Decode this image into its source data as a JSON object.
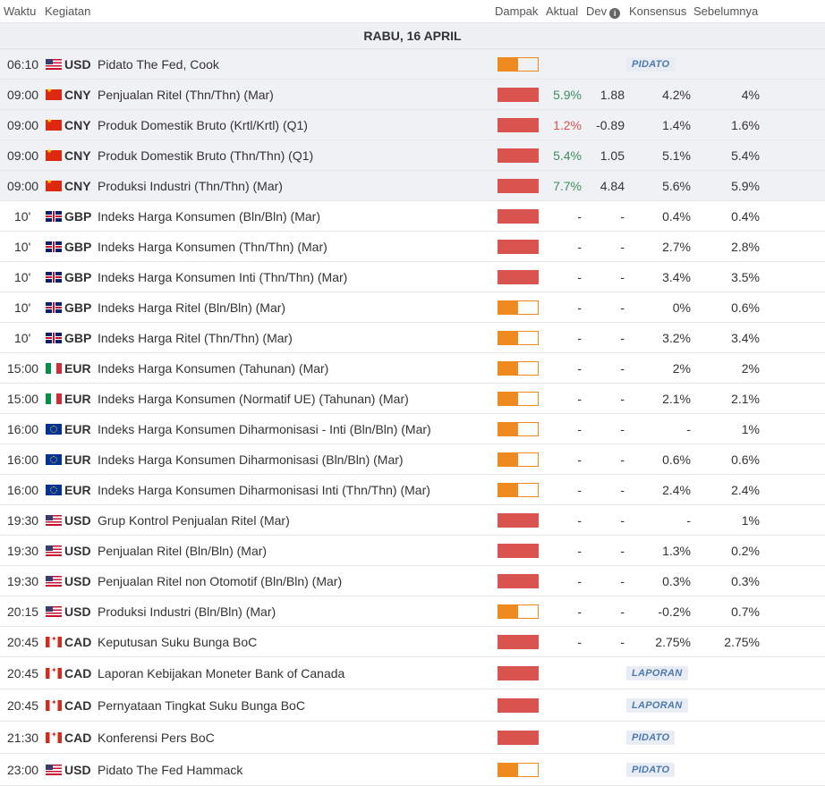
{
  "header": {
    "time": "Waktu",
    "event": "Kegiatan",
    "impact": "Dampak",
    "actual": "Aktual",
    "dev": "Dev",
    "consensus": "Konsensus",
    "previous": "Sebelumnya"
  },
  "date_label": "RABU, 16 APRIL",
  "colors": {
    "high": "#d9534f",
    "medium": "#ee8a1e",
    "positive": "#3d8f5e",
    "negative": "#d9534f",
    "badge": "#4f79ad"
  },
  "rows": [
    {
      "time": "06:10",
      "flag": "us",
      "currency": "USD",
      "event": "Pidato The Fed, Cook",
      "impact": "med",
      "badge": "PIDATO",
      "past": true
    },
    {
      "time": "09:00",
      "flag": "cn",
      "currency": "CNY",
      "event": "Penjualan Ritel (Thn/Thn) (Mar)",
      "impact": "high",
      "actual": "5.9%",
      "actual_color": "green",
      "dev": "1.88",
      "consensus": "4.2%",
      "previous": "4%",
      "past": true
    },
    {
      "time": "09:00",
      "flag": "cn",
      "currency": "CNY",
      "event": "Produk Domestik Bruto (Krtl/Krtl) (Q1)",
      "impact": "high",
      "actual": "1.2%",
      "actual_color": "red",
      "dev": "-0.89",
      "consensus": "1.4%",
      "previous": "1.6%",
      "past": true
    },
    {
      "time": "09:00",
      "flag": "cn",
      "currency": "CNY",
      "event": "Produk Domestik Bruto (Thn/Thn) (Q1)",
      "impact": "high",
      "actual": "5.4%",
      "actual_color": "green",
      "dev": "1.05",
      "consensus": "5.1%",
      "previous": "5.4%",
      "past": true
    },
    {
      "time": "09:00",
      "flag": "cn",
      "currency": "CNY",
      "event": "Produksi Industri (Thn/Thn) (Mar)",
      "impact": "high",
      "actual": "7.7%",
      "actual_color": "green",
      "dev": "4.84",
      "consensus": "5.6%",
      "previous": "5.9%",
      "past": true
    },
    {
      "time": "10'",
      "flag": "gb",
      "currency": "GBP",
      "event": "Indeks Harga Konsumen (Bln/Bln) (Mar)",
      "impact": "high",
      "actual": "-",
      "dev": "-",
      "consensus": "0.4%",
      "previous": "0.4%",
      "rel": true
    },
    {
      "time": "10'",
      "flag": "gb",
      "currency": "GBP",
      "event": "Indeks Harga Konsumen (Thn/Thn) (Mar)",
      "impact": "high",
      "actual": "-",
      "dev": "-",
      "consensus": "2.7%",
      "previous": "2.8%",
      "rel": true
    },
    {
      "time": "10'",
      "flag": "gb",
      "currency": "GBP",
      "event": "Indeks Harga Konsumen Inti (Thn/Thn) (Mar)",
      "impact": "high",
      "actual": "-",
      "dev": "-",
      "consensus": "3.4%",
      "previous": "3.5%",
      "rel": true
    },
    {
      "time": "10'",
      "flag": "gb",
      "currency": "GBP",
      "event": "Indeks Harga Ritel (Bln/Bln) (Mar)",
      "impact": "med",
      "actual": "-",
      "dev": "-",
      "consensus": "0%",
      "previous": "0.6%",
      "rel": true
    },
    {
      "time": "10'",
      "flag": "gb",
      "currency": "GBP",
      "event": "Indeks Harga Ritel (Thn/Thn) (Mar)",
      "impact": "med",
      "actual": "-",
      "dev": "-",
      "consensus": "3.2%",
      "previous": "3.4%",
      "rel": true
    },
    {
      "time": "15:00",
      "flag": "it",
      "currency": "EUR",
      "event": "Indeks Harga Konsumen (Tahunan) (Mar)",
      "impact": "med",
      "actual": "-",
      "dev": "-",
      "consensus": "2%",
      "previous": "2%"
    },
    {
      "time": "15:00",
      "flag": "it",
      "currency": "EUR",
      "event": "Indeks Harga Konsumen (Normatif UE) (Tahunan) (Mar)",
      "impact": "med",
      "actual": "-",
      "dev": "-",
      "consensus": "2.1%",
      "previous": "2.1%"
    },
    {
      "time": "16:00",
      "flag": "eu",
      "currency": "EUR",
      "event": "Indeks Harga Konsumen Diharmonisasi - Inti (Bln/Bln) (Mar)",
      "impact": "med",
      "actual": "-",
      "dev": "-",
      "consensus": "-",
      "previous": "1%"
    },
    {
      "time": "16:00",
      "flag": "eu",
      "currency": "EUR",
      "event": "Indeks Harga Konsumen Diharmonisasi (Bln/Bln) (Mar)",
      "impact": "med",
      "actual": "-",
      "dev": "-",
      "consensus": "0.6%",
      "previous": "0.6%"
    },
    {
      "time": "16:00",
      "flag": "eu",
      "currency": "EUR",
      "event": "Indeks Harga Konsumen Diharmonisasi Inti (Thn/Thn) (Mar)",
      "impact": "med",
      "actual": "-",
      "dev": "-",
      "consensus": "2.4%",
      "previous": "2.4%"
    },
    {
      "time": "19:30",
      "flag": "us",
      "currency": "USD",
      "event": "Grup Kontrol Penjualan Ritel (Mar)",
      "impact": "high",
      "actual": "-",
      "dev": "-",
      "consensus": "-",
      "previous": "1%"
    },
    {
      "time": "19:30",
      "flag": "us",
      "currency": "USD",
      "event": "Penjualan Ritel (Bln/Bln) (Mar)",
      "impact": "high",
      "actual": "-",
      "dev": "-",
      "consensus": "1.3%",
      "previous": "0.2%"
    },
    {
      "time": "19:30",
      "flag": "us",
      "currency": "USD",
      "event": "Penjualan Ritel non Otomotif (Bln/Bln) (Mar)",
      "impact": "high",
      "actual": "-",
      "dev": "-",
      "consensus": "0.3%",
      "previous": "0.3%"
    },
    {
      "time": "20:15",
      "flag": "us",
      "currency": "USD",
      "event": "Produksi Industri (Bln/Bln) (Mar)",
      "impact": "med",
      "actual": "-",
      "dev": "-",
      "consensus": "-0.2%",
      "previous": "0.7%"
    },
    {
      "time": "20:45",
      "flag": "ca",
      "currency": "CAD",
      "event": "Keputusan Suku Bunga BoC",
      "impact": "high",
      "actual": "-",
      "dev": "-",
      "consensus": "2.75%",
      "previous": "2.75%"
    },
    {
      "time": "20:45",
      "flag": "ca",
      "currency": "CAD",
      "event": "Laporan Kebijakan Moneter Bank of Canada",
      "impact": "high",
      "badge": "LAPORAN",
      "tall": true
    },
    {
      "time": "20:45",
      "flag": "ca",
      "currency": "CAD",
      "event": "Pernyataan Tingkat Suku Bunga BoC",
      "impact": "high",
      "badge": "LAPORAN",
      "tall": true
    },
    {
      "time": "21:30",
      "flag": "ca",
      "currency": "CAD",
      "event": "Konferensi Pers BoC",
      "impact": "high",
      "badge": "PIDATO",
      "tall": true
    },
    {
      "time": "23:00",
      "flag": "us",
      "currency": "USD",
      "event": "Pidato The Fed Hammack",
      "impact": "med",
      "badge": "PIDATO",
      "tall": true
    }
  ]
}
